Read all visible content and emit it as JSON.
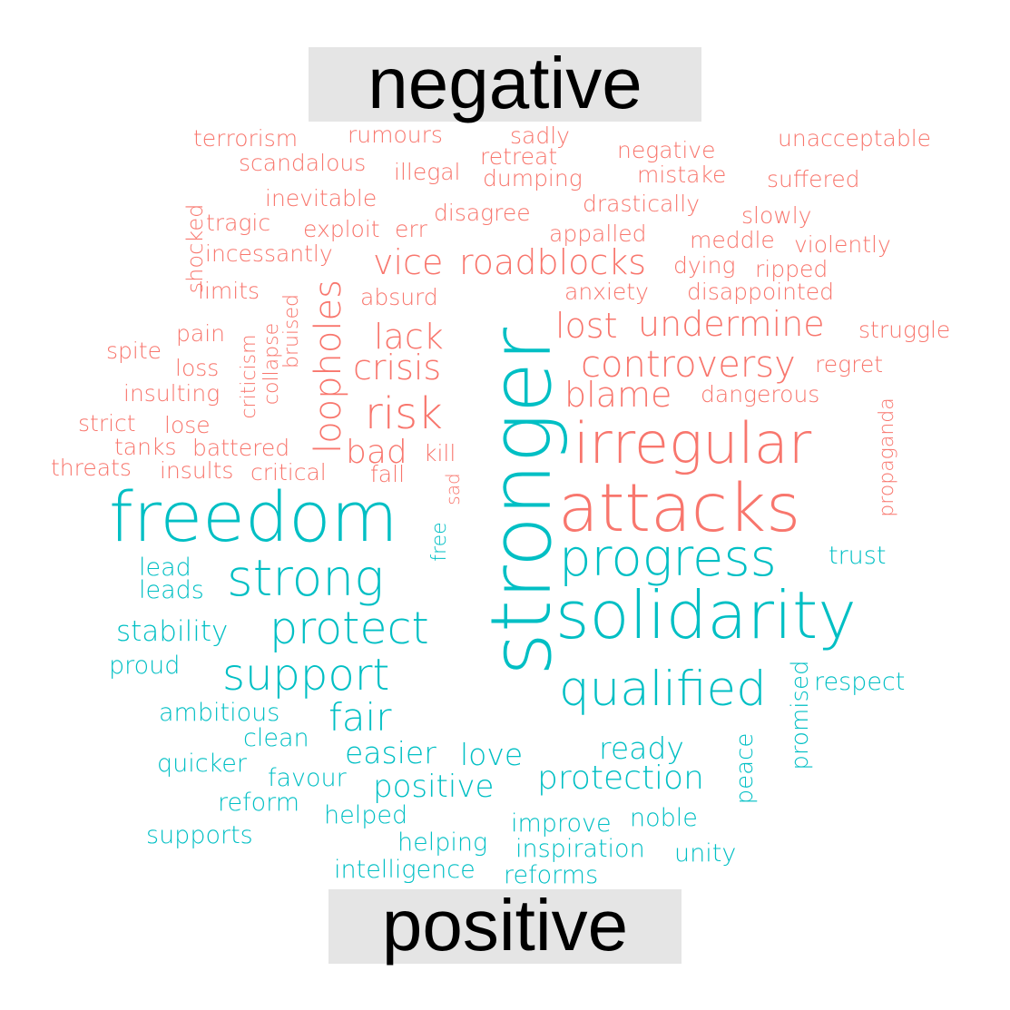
{
  "chart_data": {
    "type": "wordcloud",
    "groups": [
      {
        "label": "negative",
        "color": "#F8766D"
      },
      {
        "label": "positive",
        "color": "#00BFC4"
      }
    ],
    "words": [
      {
        "text": "stronger",
        "sentiment": "positive",
        "weight": 100,
        "rotate": true
      },
      {
        "text": "freedom",
        "sentiment": "positive",
        "weight": 80
      },
      {
        "text": "attacks",
        "sentiment": "negative",
        "weight": 80
      },
      {
        "text": "solidarity",
        "sentiment": "positive",
        "weight": 78
      },
      {
        "text": "irregular",
        "sentiment": "negative",
        "weight": 70
      },
      {
        "text": "progress",
        "sentiment": "positive",
        "weight": 62
      },
      {
        "text": "strong",
        "sentiment": "positive",
        "weight": 58
      },
      {
        "text": "qualified",
        "sentiment": "positive",
        "weight": 57
      },
      {
        "text": "protect",
        "sentiment": "positive",
        "weight": 55
      },
      {
        "text": "support",
        "sentiment": "positive",
        "weight": 55
      },
      {
        "text": "risk",
        "sentiment": "negative",
        "weight": 50
      },
      {
        "text": "loopholes",
        "sentiment": "negative",
        "weight": 44,
        "rotate": true
      },
      {
        "text": "fair",
        "sentiment": "positive",
        "weight": 44
      },
      {
        "text": "controversy",
        "sentiment": "negative",
        "weight": 42
      },
      {
        "text": "roadblocks",
        "sentiment": "negative",
        "weight": 42
      },
      {
        "text": "undermine",
        "sentiment": "negative",
        "weight": 42
      },
      {
        "text": "vice",
        "sentiment": "negative",
        "weight": 42
      },
      {
        "text": "lack",
        "sentiment": "negative",
        "weight": 40
      },
      {
        "text": "crisis",
        "sentiment": "negative",
        "weight": 40
      },
      {
        "text": "lost",
        "sentiment": "negative",
        "weight": 40
      },
      {
        "text": "blame",
        "sentiment": "negative",
        "weight": 40
      },
      {
        "text": "protection",
        "sentiment": "positive",
        "weight": 40
      },
      {
        "text": "bad",
        "sentiment": "negative",
        "weight": 38
      },
      {
        "text": "positive",
        "sentiment": "positive",
        "weight": 37
      },
      {
        "text": "easier",
        "sentiment": "positive",
        "weight": 35
      },
      {
        "text": "ready",
        "sentiment": "positive",
        "weight": 35
      },
      {
        "text": "love",
        "sentiment": "positive",
        "weight": 35
      },
      {
        "text": "stability",
        "sentiment": "positive",
        "weight": 33
      },
      {
        "text": "peace",
        "sentiment": "positive",
        "weight": 30,
        "rotate": true
      },
      {
        "text": "promised",
        "sentiment": "positive",
        "weight": 30,
        "rotate": true
      },
      {
        "text": "respect",
        "sentiment": "positive",
        "weight": 29
      },
      {
        "text": "ambitious",
        "sentiment": "positive",
        "weight": 29
      },
      {
        "text": "inspiration",
        "sentiment": "positive",
        "weight": 29
      },
      {
        "text": "helping",
        "sentiment": "positive",
        "weight": 29
      },
      {
        "text": "improve",
        "sentiment": "positive",
        "weight": 29
      },
      {
        "text": "noble",
        "sentiment": "positive",
        "weight": 29
      },
      {
        "text": "unity",
        "sentiment": "positive",
        "weight": 28
      },
      {
        "text": "helped",
        "sentiment": "positive",
        "weight": 28
      },
      {
        "text": "reforms",
        "sentiment": "positive",
        "weight": 28
      },
      {
        "text": "intelligence",
        "sentiment": "positive",
        "weight": 28
      },
      {
        "text": "supports",
        "sentiment": "positive",
        "weight": 28
      },
      {
        "text": "reform",
        "sentiment": "positive",
        "weight": 27
      },
      {
        "text": "favour",
        "sentiment": "positive",
        "weight": 27
      },
      {
        "text": "quicker",
        "sentiment": "positive",
        "weight": 27
      },
      {
        "text": "clean",
        "sentiment": "positive",
        "weight": 27
      },
      {
        "text": "proud",
        "sentiment": "positive",
        "weight": 27
      },
      {
        "text": "lead",
        "sentiment": "positive",
        "weight": 27
      },
      {
        "text": "leads",
        "sentiment": "positive",
        "weight": 27
      },
      {
        "text": "trust",
        "sentiment": "positive",
        "weight": 27
      },
      {
        "text": "free",
        "sentiment": "positive",
        "weight": 24,
        "rotate": true
      },
      {
        "text": "shocked",
        "sentiment": "negative",
        "weight": 26,
        "rotate": true
      },
      {
        "text": "tragic",
        "sentiment": "negative",
        "weight": 27
      },
      {
        "text": "exploit",
        "sentiment": "negative",
        "weight": 27
      },
      {
        "text": "err",
        "sentiment": "negative",
        "weight": 27
      },
      {
        "text": "disagree",
        "sentiment": "negative",
        "weight": 27
      },
      {
        "text": "drastically",
        "sentiment": "negative",
        "weight": 27
      },
      {
        "text": "slowly",
        "sentiment": "negative",
        "weight": 27
      },
      {
        "text": "incessantly",
        "sentiment": "negative",
        "weight": 27
      },
      {
        "text": "appalled",
        "sentiment": "negative",
        "weight": 27
      },
      {
        "text": "meddle",
        "sentiment": "negative",
        "weight": 27
      },
      {
        "text": "violently",
        "sentiment": "negative",
        "weight": 27
      },
      {
        "text": "dying",
        "sentiment": "negative",
        "weight": 27
      },
      {
        "text": "ripped",
        "sentiment": "negative",
        "weight": 27
      },
      {
        "text": "limits",
        "sentiment": "negative",
        "weight": 27
      },
      {
        "text": "absurd",
        "sentiment": "negative",
        "weight": 27
      },
      {
        "text": "anxiety",
        "sentiment": "negative",
        "weight": 27
      },
      {
        "text": "disappointed",
        "sentiment": "negative",
        "weight": 27
      },
      {
        "text": "bruised",
        "sentiment": "negative",
        "weight": 25,
        "rotate": true
      },
      {
        "text": "collapse",
        "sentiment": "negative",
        "weight": 25,
        "rotate": true
      },
      {
        "text": "criticism",
        "sentiment": "negative",
        "weight": 25,
        "rotate": true
      },
      {
        "text": "pain",
        "sentiment": "negative",
        "weight": 27
      },
      {
        "text": "spite",
        "sentiment": "negative",
        "weight": 27
      },
      {
        "text": "loss",
        "sentiment": "negative",
        "weight": 27
      },
      {
        "text": "struggle",
        "sentiment": "negative",
        "weight": 27
      },
      {
        "text": "regret",
        "sentiment": "negative",
        "weight": 27
      },
      {
        "text": "dangerous",
        "sentiment": "negative",
        "weight": 27
      },
      {
        "text": "propaganda",
        "sentiment": "negative",
        "weight": 25,
        "rotate": true
      },
      {
        "text": "insulting",
        "sentiment": "negative",
        "weight": 27
      },
      {
        "text": "strict",
        "sentiment": "negative",
        "weight": 27
      },
      {
        "text": "lose",
        "sentiment": "negative",
        "weight": 27
      },
      {
        "text": "tanks",
        "sentiment": "negative",
        "weight": 27
      },
      {
        "text": "battered",
        "sentiment": "negative",
        "weight": 27
      },
      {
        "text": "kill",
        "sentiment": "negative",
        "weight": 27
      },
      {
        "text": "threats",
        "sentiment": "negative",
        "weight": 27
      },
      {
        "text": "insults",
        "sentiment": "negative",
        "weight": 27
      },
      {
        "text": "critical",
        "sentiment": "negative",
        "weight": 27
      },
      {
        "text": "fall",
        "sentiment": "negative",
        "weight": 27
      },
      {
        "text": "sad",
        "sentiment": "negative",
        "weight": 23,
        "rotate": true
      },
      {
        "text": "terrorism",
        "sentiment": "negative",
        "weight": 27
      },
      {
        "text": "rumours",
        "sentiment": "negative",
        "weight": 27
      },
      {
        "text": "sadly",
        "sentiment": "negative",
        "weight": 27
      },
      {
        "text": "negative",
        "sentiment": "negative",
        "weight": 27
      },
      {
        "text": "unacceptable",
        "sentiment": "negative",
        "weight": 27
      },
      {
        "text": "scandalous",
        "sentiment": "negative",
        "weight": 27
      },
      {
        "text": "illegal",
        "sentiment": "negative",
        "weight": 27
      },
      {
        "text": "retreat",
        "sentiment": "negative",
        "weight": 27
      },
      {
        "text": "mistake",
        "sentiment": "negative",
        "weight": 27
      },
      {
        "text": "suffered",
        "sentiment": "negative",
        "weight": 27
      },
      {
        "text": "dumping",
        "sentiment": "negative",
        "weight": 27
      },
      {
        "text": "inevitable",
        "sentiment": "negative",
        "weight": 27
      }
    ]
  }
}
